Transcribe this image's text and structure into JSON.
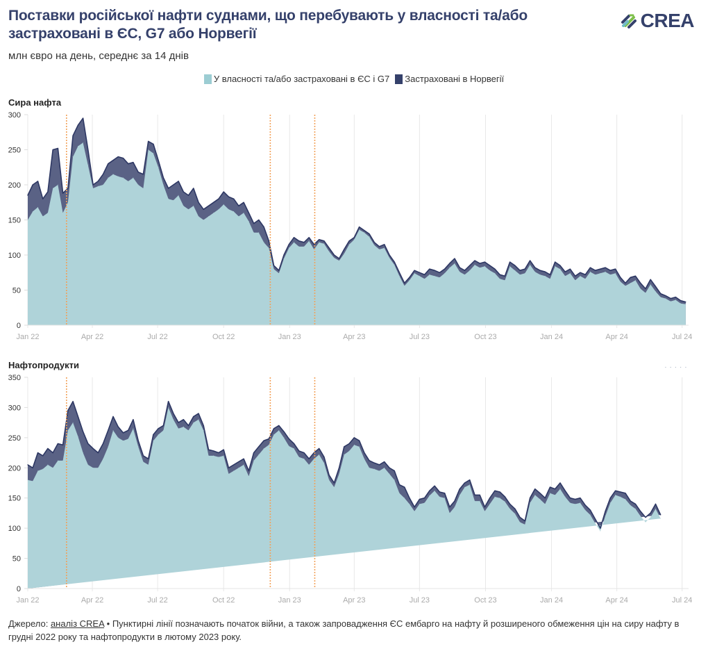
{
  "header": {
    "title": "Поставки російської нафти суднами, що перебувають у власності та/або застраховані в ЄС, G7 або Норвегії",
    "subtitle": "млн євро на день, середнє за 14 днів",
    "logo_text": "CREA"
  },
  "legend": [
    {
      "label": "У власності та/або застраховані в ЄС і G7",
      "color": "#9ccdd3"
    },
    {
      "label": "Застраховані в Норвегії",
      "color": "#35416b"
    }
  ],
  "footer": {
    "source_prefix": "Джерело: ",
    "source_link": "аналіз CREA",
    "note": " • Пунктирні лінії позначають початок війни, а також запровадження ЄС ембарго на нафту й розширеного обмеження цін на сиру нафту в грудні 2022 року та нафтопродукти в лютому 2023 року."
  },
  "colors": {
    "eu_g7_fill": "#afd3d9",
    "norway_fill": "#5a6285",
    "line": "#2d3763",
    "event_line": "#f2a25a",
    "grid": "#e8e8e8"
  },
  "chart_data": [
    {
      "type": "area",
      "title": "Сира нафта",
      "ylim": [
        0,
        300
      ],
      "yticks": [
        0,
        50,
        100,
        150,
        200,
        250,
        300
      ],
      "xlim": [
        "2022-01-01",
        "2024-07-10"
      ],
      "xticks": [
        {
          "date": "2022-01-01",
          "label": "Jan 22"
        },
        {
          "date": "2022-04-01",
          "label": "Apr 22"
        },
        {
          "date": "2022-07-01",
          "label": "Jul 22"
        },
        {
          "date": "2022-10-01",
          "label": "Oct 22"
        },
        {
          "date": "2023-01-01",
          "label": "Jan 23"
        },
        {
          "date": "2023-04-01",
          "label": "Apr 23"
        },
        {
          "date": "2023-07-01",
          "label": "Jul 23"
        },
        {
          "date": "2023-10-01",
          "label": "Oct 23"
        },
        {
          "date": "2024-01-01",
          "label": "Jan 24"
        },
        {
          "date": "2024-04-01",
          "label": "Apr 24"
        },
        {
          "date": "2024-07-01",
          "label": "Jul 24"
        }
      ],
      "event_lines": [
        "2022-02-24",
        "2022-12-05",
        "2023-02-05"
      ],
      "grid": true,
      "legend": "top-center",
      "series": [
        {
          "name": "У власності та/або застраховані в ЄС і G7",
          "stack": "base"
        },
        {
          "name": "Застраховані в Норвегії",
          "stack": "top"
        }
      ],
      "x": [
        "2022-01-01",
        "2022-01-08",
        "2022-01-15",
        "2022-01-22",
        "2022-01-29",
        "2022-02-05",
        "2022-02-12",
        "2022-02-19",
        "2022-02-26",
        "2022-03-05",
        "2022-03-12",
        "2022-03-19",
        "2022-03-26",
        "2022-04-02",
        "2022-04-09",
        "2022-04-16",
        "2022-04-23",
        "2022-04-30",
        "2022-05-07",
        "2022-05-14",
        "2022-05-21",
        "2022-05-28",
        "2022-06-04",
        "2022-06-11",
        "2022-06-18",
        "2022-06-25",
        "2022-07-02",
        "2022-07-09",
        "2022-07-16",
        "2022-07-23",
        "2022-07-30",
        "2022-08-06",
        "2022-08-13",
        "2022-08-20",
        "2022-08-27",
        "2022-09-03",
        "2022-09-10",
        "2022-09-17",
        "2022-09-24",
        "2022-10-01",
        "2022-10-08",
        "2022-10-15",
        "2022-10-22",
        "2022-10-29",
        "2022-11-05",
        "2022-11-12",
        "2022-11-19",
        "2022-11-26",
        "2022-12-03",
        "2022-12-10",
        "2022-12-17",
        "2022-12-24",
        "2022-12-31",
        "2023-01-07",
        "2023-01-14",
        "2023-01-21",
        "2023-01-28",
        "2023-02-04",
        "2023-02-11",
        "2023-02-18",
        "2023-02-25",
        "2023-03-04",
        "2023-03-11",
        "2023-03-18",
        "2023-03-25",
        "2023-04-01",
        "2023-04-08",
        "2023-04-15",
        "2023-04-22",
        "2023-04-29",
        "2023-05-06",
        "2023-05-13",
        "2023-05-20",
        "2023-05-27",
        "2023-06-03",
        "2023-06-10",
        "2023-06-17",
        "2023-06-24",
        "2023-07-01",
        "2023-07-08",
        "2023-07-15",
        "2023-07-22",
        "2023-07-29",
        "2023-08-05",
        "2023-08-12",
        "2023-08-19",
        "2023-08-26",
        "2023-09-02",
        "2023-09-09",
        "2023-09-16",
        "2023-09-23",
        "2023-09-30",
        "2023-10-07",
        "2023-10-14",
        "2023-10-21",
        "2023-10-28",
        "2023-11-04",
        "2023-11-11",
        "2023-11-18",
        "2023-11-25",
        "2023-12-02",
        "2023-12-09",
        "2023-12-16",
        "2023-12-23",
        "2023-12-30",
        "2024-01-06",
        "2024-01-13",
        "2024-01-20",
        "2024-01-27",
        "2024-02-03",
        "2024-02-10",
        "2024-02-17",
        "2024-02-24",
        "2024-03-02",
        "2024-03-09",
        "2024-03-16",
        "2024-03-23",
        "2024-03-30",
        "2024-04-06",
        "2024-04-13",
        "2024-04-20",
        "2024-04-27",
        "2024-05-04",
        "2024-05-11",
        "2024-05-18",
        "2024-05-25",
        "2024-06-01",
        "2024-06-08",
        "2024-06-15",
        "2024-06-22",
        "2024-06-29",
        "2024-07-06"
      ],
      "total": [
        185,
        200,
        205,
        180,
        190,
        250,
        252,
        188,
        195,
        270,
        285,
        295,
        250,
        200,
        205,
        215,
        230,
        235,
        240,
        238,
        230,
        232,
        218,
        215,
        262,
        258,
        235,
        210,
        195,
        200,
        205,
        190,
        185,
        195,
        175,
        165,
        170,
        175,
        180,
        190,
        183,
        180,
        170,
        175,
        160,
        145,
        150,
        140,
        120,
        85,
        78,
        100,
        115,
        125,
        120,
        118,
        125,
        115,
        122,
        120,
        110,
        100,
        95,
        108,
        120,
        125,
        140,
        135,
        130,
        118,
        112,
        115,
        100,
        90,
        75,
        60,
        68,
        78,
        75,
        72,
        80,
        78,
        75,
        80,
        88,
        95,
        82,
        78,
        85,
        92,
        88,
        90,
        85,
        80,
        72,
        70,
        90,
        85,
        78,
        80,
        92,
        82,
        78,
        76,
        72,
        90,
        85,
        76,
        80,
        70,
        75,
        72,
        82,
        78,
        80,
        82,
        78,
        80,
        68,
        60,
        68,
        70,
        60,
        52,
        65,
        55,
        45,
        42,
        38,
        40,
        35,
        33
      ],
      "eu_g7": [
        150,
        162,
        168,
        155,
        160,
        195,
        200,
        160,
        175,
        240,
        255,
        260,
        228,
        195,
        198,
        200,
        210,
        215,
        212,
        210,
        205,
        210,
        200,
        195,
        250,
        245,
        225,
        200,
        180,
        178,
        185,
        170,
        165,
        170,
        155,
        150,
        155,
        160,
        165,
        172,
        165,
        162,
        155,
        160,
        148,
        132,
        132,
        118,
        110,
        80,
        74,
        95,
        110,
        118,
        112,
        112,
        120,
        108,
        118,
        116,
        105,
        96,
        92,
        102,
        115,
        122,
        136,
        132,
        126,
        114,
        108,
        110,
        96,
        86,
        70,
        56,
        64,
        74,
        70,
        66,
        72,
        70,
        68,
        74,
        82,
        88,
        76,
        72,
        78,
        86,
        82,
        84,
        78,
        74,
        66,
        64,
        84,
        78,
        72,
        74,
        86,
        76,
        72,
        70,
        66,
        84,
        80,
        70,
        74,
        64,
        70,
        66,
        76,
        72,
        74,
        76,
        72,
        74,
        62,
        56,
        60,
        64,
        52,
        46,
        58,
        48,
        40,
        38,
        34,
        36,
        31,
        30
      ]
    },
    {
      "type": "area",
      "title": "Нафтопродукти",
      "ylim": [
        0,
        350
      ],
      "yticks": [
        0,
        50,
        100,
        150,
        200,
        250,
        300,
        350
      ],
      "xlim": [
        "2022-01-01",
        "2024-07-10"
      ],
      "xticks": [
        {
          "date": "2022-01-01",
          "label": "Jan 22"
        },
        {
          "date": "2022-04-01",
          "label": "Apr 22"
        },
        {
          "date": "2022-07-01",
          "label": "Jul 22"
        },
        {
          "date": "2022-10-01",
          "label": "Oct 22"
        },
        {
          "date": "2023-01-01",
          "label": "Jan 23"
        },
        {
          "date": "2023-04-01",
          "label": "Apr 23"
        },
        {
          "date": "2023-07-01",
          "label": "Jul 23"
        },
        {
          "date": "2023-10-01",
          "label": "Oct 23"
        },
        {
          "date": "2024-01-01",
          "label": "Jan 24"
        },
        {
          "date": "2024-04-01",
          "label": "Apr 24"
        },
        {
          "date": "2024-07-01",
          "label": "Jul 24"
        }
      ],
      "event_lines": [
        "2022-02-24",
        "2022-12-05",
        "2023-02-05"
      ],
      "grid": true,
      "legend": "top-center",
      "series": [
        {
          "name": "У власності та/або застраховані в ЄС і G7",
          "stack": "base"
        },
        {
          "name": "Застраховані в Норвегії",
          "stack": "top"
        }
      ],
      "x": [
        "2022-01-01",
        "2022-01-08",
        "2022-01-15",
        "2022-01-22",
        "2022-01-29",
        "2022-02-05",
        "2022-02-12",
        "2022-02-19",
        "2022-02-26",
        "2022-03-05",
        "2022-03-12",
        "2022-03-19",
        "2022-03-26",
        "2022-04-02",
        "2022-04-09",
        "2022-04-16",
        "2022-04-23",
        "2022-04-30",
        "2022-05-07",
        "2022-05-14",
        "2022-05-21",
        "2022-05-28",
        "2022-06-04",
        "2022-06-11",
        "2022-06-18",
        "2022-06-25",
        "2022-07-02",
        "2022-07-09",
        "2022-07-16",
        "2022-07-23",
        "2022-07-30",
        "2022-08-06",
        "2022-08-13",
        "2022-08-20",
        "2022-08-27",
        "2022-09-03",
        "2022-09-10",
        "2022-09-17",
        "2022-09-24",
        "2022-10-01",
        "2022-10-08",
        "2022-10-15",
        "2022-10-22",
        "2022-10-29",
        "2022-11-05",
        "2022-11-12",
        "2022-11-19",
        "2022-11-26",
        "2022-12-03",
        "2022-12-10",
        "2022-12-17",
        "2022-12-24",
        "2022-12-31",
        "2023-01-07",
        "2023-01-14",
        "2023-01-21",
        "2023-01-28",
        "2023-02-04",
        "2023-02-11",
        "2023-02-18",
        "2023-02-25",
        "2023-03-04",
        "2023-03-11",
        "2023-03-18",
        "2023-03-25",
        "2023-04-01",
        "2023-04-08",
        "2023-04-15",
        "2023-04-22",
        "2023-04-29",
        "2023-05-06",
        "2023-05-13",
        "2023-05-20",
        "2023-05-27",
        "2023-06-03",
        "2023-06-10",
        "2023-06-17",
        "2023-06-24",
        "2023-07-01",
        "2023-07-08",
        "2023-07-15",
        "2023-07-22",
        "2023-07-29",
        "2023-08-05",
        "2023-08-12",
        "2023-08-19",
        "2023-08-26",
        "2023-09-02",
        "2023-09-09",
        "2023-09-16",
        "2023-09-23",
        "2023-09-30",
        "2023-10-07",
        "2023-10-14",
        "2023-10-21",
        "2023-10-28",
        "2023-11-04",
        "2023-11-11",
        "2023-11-18",
        "2023-11-25",
        "2023-12-02",
        "2023-12-09",
        "2023-12-16",
        "2023-12-23",
        "2023-12-30",
        "2024-01-06",
        "2024-01-13",
        "2024-01-20",
        "2024-01-27",
        "2024-02-03",
        "2024-02-10",
        "2024-02-17",
        "2024-02-24",
        "2024-03-02",
        "2024-03-09",
        "2024-03-16",
        "2024-03-23",
        "2024-03-30",
        "2024-04-06",
        "2024-04-13",
        "2024-04-20",
        "2024-04-27",
        "2024-05-04",
        "2024-05-11",
        "2024-05-18",
        "2024-05-25",
        "2024-06-01",
        "2024-06-08",
        "2024-06-15",
        "2024-06-22",
        "2024-06-29",
        "2024-07-06"
      ],
      "total": [
        205,
        200,
        225,
        220,
        232,
        225,
        240,
        238,
        295,
        310,
        285,
        260,
        240,
        232,
        225,
        240,
        262,
        285,
        268,
        258,
        262,
        280,
        245,
        220,
        215,
        255,
        265,
        270,
        310,
        290,
        275,
        280,
        270,
        285,
        290,
        270,
        230,
        228,
        225,
        230,
        200,
        205,
        210,
        215,
        195,
        225,
        235,
        245,
        248,
        265,
        270,
        260,
        248,
        240,
        228,
        225,
        215,
        225,
        232,
        218,
        188,
        175,
        200,
        235,
        240,
        250,
        245,
        225,
        212,
        208,
        205,
        210,
        200,
        195,
        172,
        168,
        150,
        135,
        148,
        150,
        162,
        170,
        160,
        158,
        135,
        145,
        165,
        175,
        180,
        155,
        155,
        135,
        150,
        162,
        160,
        152,
        140,
        132,
        118,
        112,
        150,
        165,
        158,
        150,
        168,
        165,
        175,
        162,
        150,
        148,
        150,
        138,
        130,
        115,
        100,
        128,
        150,
        162,
        160,
        158,
        145,
        140,
        128,
        118,
        125,
        140,
        122
      ],
      "eu_g7": [
        180,
        178,
        195,
        198,
        205,
        200,
        212,
        212,
        262,
        275,
        252,
        225,
        205,
        200,
        200,
        215,
        235,
        262,
        250,
        245,
        248,
        265,
        235,
        210,
        205,
        245,
        255,
        262,
        300,
        280,
        265,
        268,
        262,
        275,
        280,
        262,
        220,
        220,
        218,
        220,
        190,
        195,
        200,
        205,
        186,
        212,
        222,
        232,
        238,
        255,
        262,
        250,
        236,
        232,
        218,
        215,
        205,
        215,
        222,
        208,
        180,
        168,
        190,
        222,
        228,
        238,
        235,
        215,
        200,
        198,
        195,
        200,
        190,
        180,
        158,
        150,
        140,
        128,
        140,
        142,
        154,
        162,
        152,
        150,
        125,
        135,
        155,
        168,
        172,
        145,
        145,
        128,
        140,
        152,
        150,
        144,
        132,
        124,
        110,
        106,
        142,
        155,
        148,
        140,
        158,
        155,
        165,
        152,
        142,
        140,
        142,
        130,
        122,
        108,
        95,
        120,
        142,
        155,
        152,
        148,
        138,
        132,
        120,
        110,
        118,
        132,
        116
      ]
    }
  ]
}
